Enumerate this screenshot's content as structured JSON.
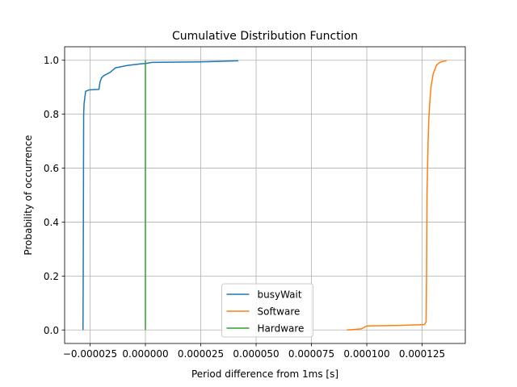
{
  "chart_data": {
    "type": "line",
    "title": "Cumulative Distribution Function",
    "xlabel": "Period difference from 1ms [s]",
    "ylabel": "Probability of occurrence",
    "xlim": [
      -3.65e-05,
      0.0001445
    ],
    "ylim": [
      -0.05,
      1.05
    ],
    "grid": true,
    "legend_position": "lower-center",
    "x_ticks": [
      -2.5e-05,
      0.0,
      2.5e-05,
      5e-05,
      7.5e-05,
      0.0001,
      0.000125
    ],
    "x_tick_labels": [
      "−0.000025",
      "0.000000",
      "0.000025",
      "0.000050",
      "0.000075",
      "0.000100",
      "0.000125"
    ],
    "y_ticks": [
      0.0,
      0.2,
      0.4,
      0.6,
      0.8,
      1.0
    ],
    "y_tick_labels": [
      "0.0",
      "0.2",
      "0.4",
      "0.6",
      "0.8",
      "1.0"
    ],
    "series": [
      {
        "name": "busyWait",
        "color": "#1f77b4",
        "x": [
          -2.82e-05,
          -2.81e-05,
          -2.8e-05,
          -2.79e-05,
          -2.77e-05,
          -2.74e-05,
          -2.7e-05,
          -2.55e-05,
          -2.1e-05,
          -2.05e-05,
          -1.98e-05,
          -1.88e-05,
          -1.6e-05,
          -1.35e-05,
          -1.1e-05,
          -8e-06,
          -5e-06,
          -1.8e-06,
          0.0,
          3e-06,
          2.5e-05,
          4.2e-05
        ],
        "y": [
          0.0,
          0.2,
          0.5,
          0.8,
          0.84,
          0.86,
          0.885,
          0.89,
          0.892,
          0.92,
          0.935,
          0.943,
          0.955,
          0.972,
          0.976,
          0.981,
          0.984,
          0.987,
          0.988,
          0.992,
          0.994,
          0.998
        ]
      },
      {
        "name": "Software",
        "color": "#ff7f0e",
        "x": [
          9.1e-05,
          9.45e-05,
          9.75e-05,
          9.85e-05,
          9.95e-05,
          0.0001005,
          0.000115,
          0.000126,
          0.0001268,
          0.000127,
          0.0001272,
          0.0001277,
          0.000128,
          0.0001285,
          0.000129,
          0.00013,
          0.0001315,
          0.000133,
          0.0001345,
          0.000136
        ],
        "y": [
          0.0,
          0.002,
          0.004,
          0.008,
          0.013,
          0.015,
          0.017,
          0.02,
          0.03,
          0.2,
          0.5,
          0.7,
          0.78,
          0.85,
          0.9,
          0.95,
          0.982,
          0.992,
          0.996,
          0.998
        ]
      },
      {
        "name": "Hardware",
        "color": "#2ca02c",
        "x": [
          0.0,
          0.0
        ],
        "y": [
          0.0,
          1.0
        ]
      }
    ]
  }
}
